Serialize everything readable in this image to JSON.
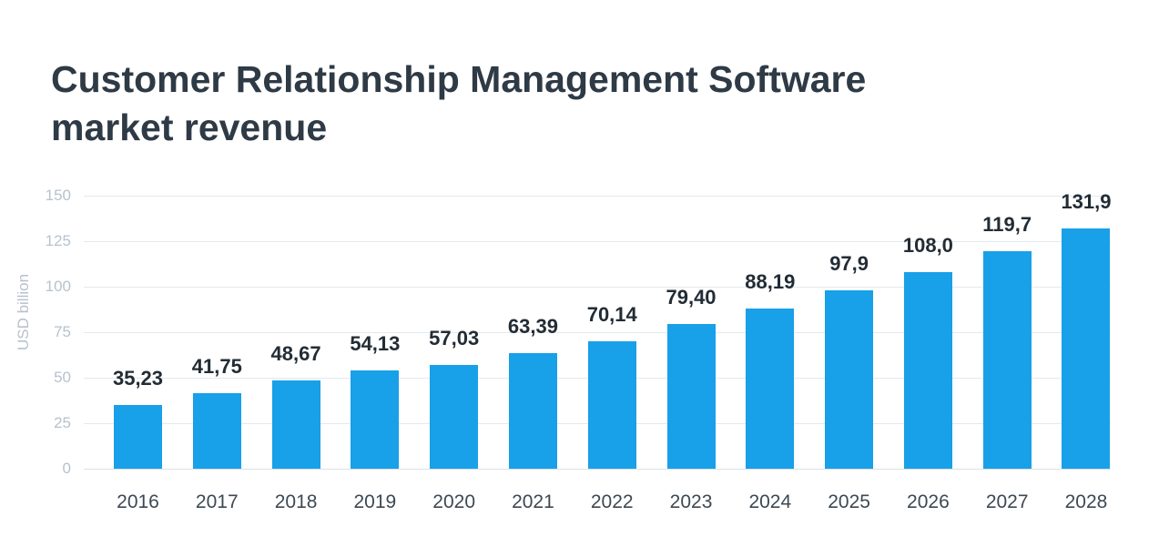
{
  "title": {
    "line1": "Customer Relationship Management Software",
    "line2": "market revenue"
  },
  "chart_data": {
    "type": "bar",
    "title": "Customer Relationship Management Software market revenue",
    "ylabel": "USD billion",
    "xlabel": "",
    "categories": [
      "2016",
      "2017",
      "2018",
      "2019",
      "2020",
      "2021",
      "2022",
      "2023",
      "2024",
      "2025",
      "2026",
      "2027",
      "2028"
    ],
    "values": [
      35.23,
      41.75,
      48.67,
      54.13,
      57.03,
      63.39,
      70.14,
      79.4,
      88.19,
      97.9,
      108.0,
      119.7,
      131.9
    ],
    "value_labels": [
      "35,23",
      "41,75",
      "48,67",
      "54,13",
      "57,03",
      "63,39",
      "70,14",
      "79,40",
      "88,19",
      "97,9",
      "108,0",
      "119,7",
      "131,9"
    ],
    "yticks": [
      0,
      25,
      50,
      75,
      100,
      125,
      150
    ],
    "ylim": [
      0,
      150
    ],
    "grid": true,
    "legend_position": "none",
    "bar_color": "#18a0e8"
  },
  "colors": {
    "background": "#ffffff",
    "title_text": "#2e3a45",
    "value_label_text": "#222c35",
    "year_label_text": "#3c4954",
    "tick_label_text": "#b7c2cd",
    "gridline": "#e3e9ee",
    "bar": "#18a0e8"
  }
}
